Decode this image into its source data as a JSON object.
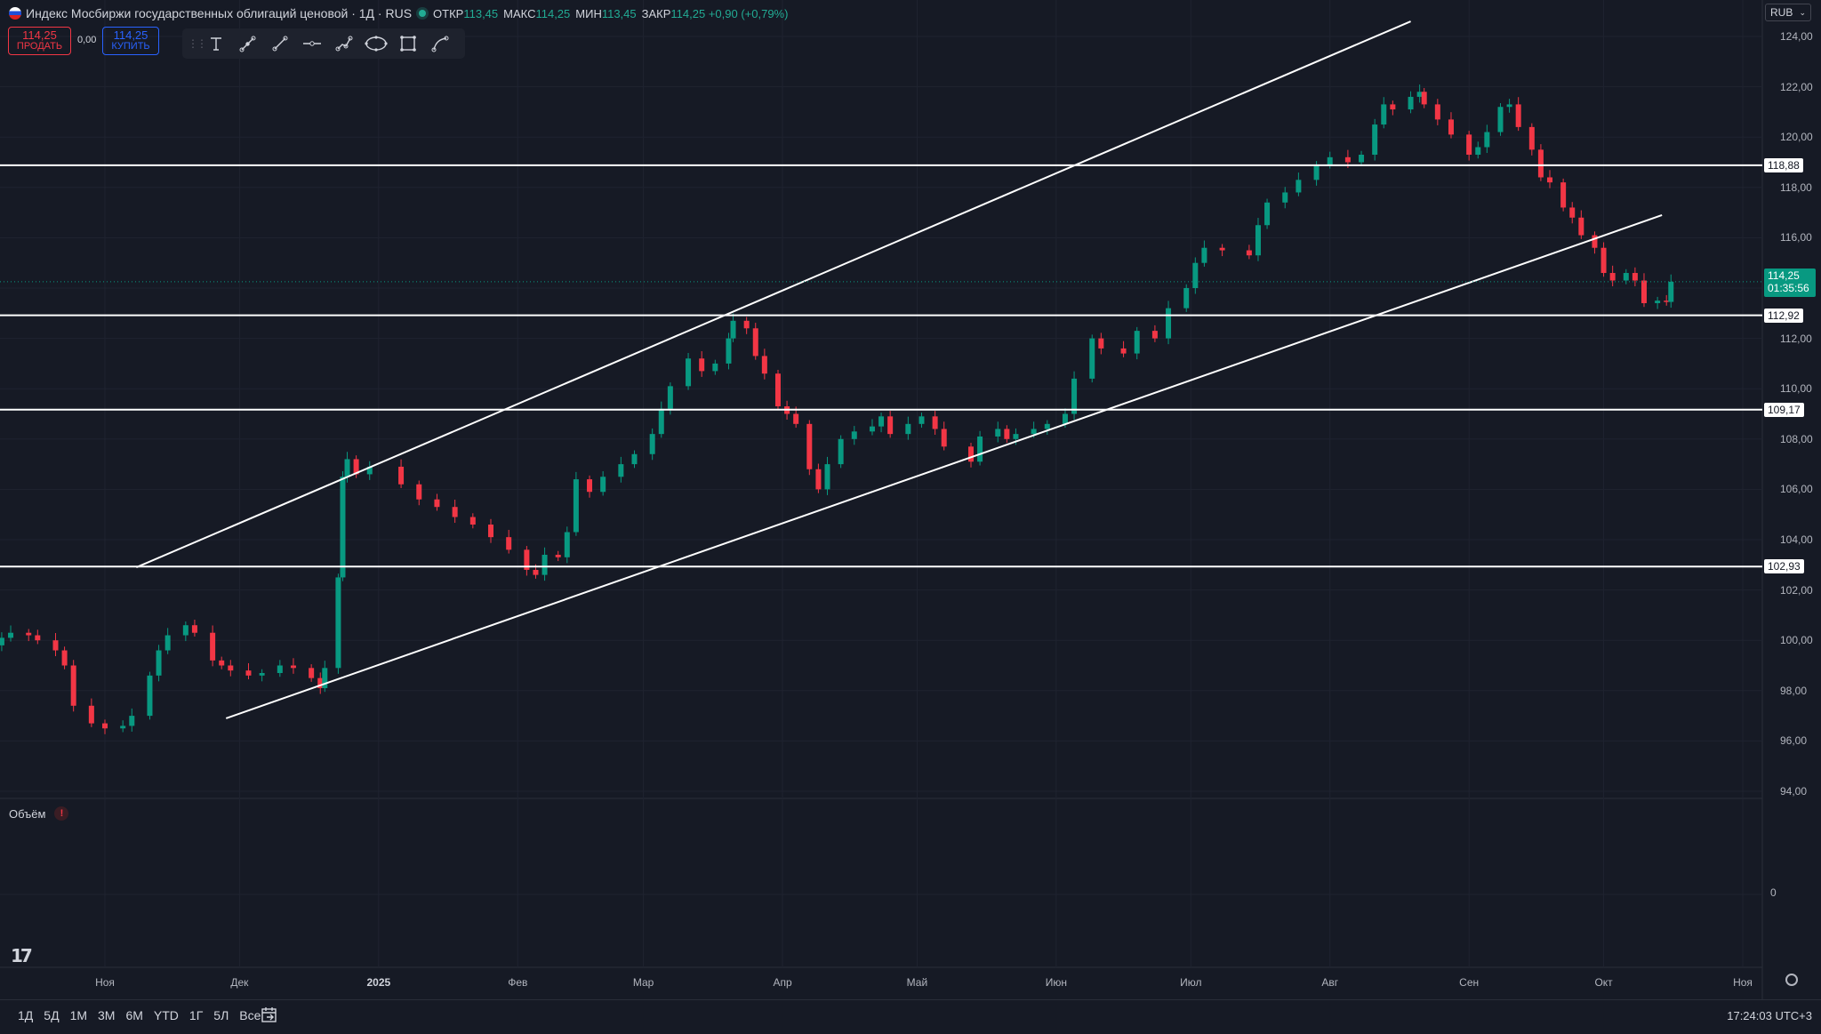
{
  "header": {
    "title": "Индекс Мосбиржи государственных облигаций ценовой · 1Д · RUS",
    "ohlc": [
      {
        "k": "ОТКР",
        "v": "113,45"
      },
      {
        "k": "МАКС",
        "v": "114,25"
      },
      {
        "k": "МИН",
        "v": "113,45"
      },
      {
        "k": "ЗАКР",
        "v": "114,25 +0,90 (+0,79%)"
      }
    ]
  },
  "trade": {
    "sell_price": "114,25",
    "sell_label": "ПРОДАТЬ",
    "spread": "0,00",
    "buy_price": "114,25",
    "buy_label": "КУПИТЬ"
  },
  "toolbar": {
    "tools": [
      "text-tool-icon",
      "arrow-line-tool-icon",
      "trend-line-tool-icon",
      "horizontal-ray-tool-icon",
      "path-tool-icon",
      "ellipse-tool-icon",
      "rectangle-tool-icon",
      "curve-tool-icon"
    ]
  },
  "currency": "RUB",
  "volume_label": "Объём",
  "volume_warning": "!",
  "volume_zero": "0",
  "last_price": {
    "value": "114,25",
    "countdown": "01:35:56"
  },
  "levels": [
    {
      "label": "118,88",
      "value": 118.88
    },
    {
      "label": "112,92",
      "value": 112.92
    },
    {
      "label": "109,17",
      "value": 109.17
    },
    {
      "label": "102,93",
      "value": 102.93
    }
  ],
  "bottom": {
    "ranges": [
      "1Д",
      "5Д",
      "1М",
      "3М",
      "6М",
      "YTD",
      "1Г",
      "5Л",
      "Все"
    ],
    "clock": "17:24:03 UTC+3"
  },
  "chart_data": {
    "type": "candlestick",
    "title": "Индекс Мосбиржи государственных облигаций ценовой",
    "ylim": [
      93.5,
      124.5
    ],
    "y_ticks": [
      94,
      96,
      98,
      100,
      102,
      104,
      106,
      108,
      110,
      112,
      114,
      116,
      118,
      120,
      122,
      124
    ],
    "y_tick_labels": [
      "94,00",
      "96,00",
      "98,00",
      "100,00",
      "102,00",
      "104,00",
      "106,00",
      "108,00",
      "110,00",
      "112,00",
      "114,00",
      "116,00",
      "118,00",
      "120,00",
      "122,00",
      "124,00"
    ],
    "x_ticks": [
      {
        "label": "Ноя",
        "date": "2024-11-01"
      },
      {
        "label": "Дек",
        "date": "2024-12-01"
      },
      {
        "label": "2025",
        "date": "2025-01-01",
        "bold": true
      },
      {
        "label": "Фев",
        "date": "2025-02-01"
      },
      {
        "label": "Мар",
        "date": "2025-03-01"
      },
      {
        "label": "Апр",
        "date": "2025-04-01"
      },
      {
        "label": "Май",
        "date": "2025-05-01"
      },
      {
        "label": "Июн",
        "date": "2025-06-01"
      },
      {
        "label": "Июл",
        "date": "2025-07-01"
      },
      {
        "label": "Авг",
        "date": "2025-08-01"
      },
      {
        "label": "Сен",
        "date": "2025-09-01"
      },
      {
        "label": "Окт",
        "date": "2025-10-01"
      },
      {
        "label": "Ноя",
        "date": "2025-11-01"
      }
    ],
    "closes": [
      [
        "2024-10-07",
        99.8
      ],
      [
        "2024-10-09",
        100.1
      ],
      [
        "2024-10-11",
        100.3
      ],
      [
        "2024-10-15",
        100.2
      ],
      [
        "2024-10-17",
        100.0
      ],
      [
        "2024-10-21",
        99.6
      ],
      [
        "2024-10-23",
        99.0
      ],
      [
        "2024-10-25",
        97.4
      ],
      [
        "2024-10-29",
        96.7
      ],
      [
        "2024-11-01",
        96.5
      ],
      [
        "2024-11-05",
        96.6
      ],
      [
        "2024-11-07",
        97.0
      ],
      [
        "2024-11-11",
        98.6
      ],
      [
        "2024-11-13",
        99.6
      ],
      [
        "2024-11-15",
        100.2
      ],
      [
        "2024-11-19",
        100.6
      ],
      [
        "2024-11-21",
        100.3
      ],
      [
        "2024-11-25",
        99.2
      ],
      [
        "2024-11-27",
        99.0
      ],
      [
        "2024-11-29",
        98.8
      ],
      [
        "2024-12-03",
        98.6
      ],
      [
        "2024-12-06",
        98.7
      ],
      [
        "2024-12-10",
        99.0
      ],
      [
        "2024-12-13",
        98.9
      ],
      [
        "2024-12-17",
        98.5
      ],
      [
        "2024-12-19",
        98.1
      ],
      [
        "2024-12-20",
        98.9
      ],
      [
        "2024-12-23",
        102.5
      ],
      [
        "2024-12-24",
        106.5
      ],
      [
        "2024-12-25",
        107.2
      ],
      [
        "2024-12-27",
        106.6
      ],
      [
        "2024-12-30",
        106.9
      ],
      [
        "2025-01-06",
        106.2
      ],
      [
        "2025-01-10",
        105.6
      ],
      [
        "2025-01-14",
        105.3
      ],
      [
        "2025-01-18",
        104.9
      ],
      [
        "2025-01-22",
        104.6
      ],
      [
        "2025-01-26",
        104.1
      ],
      [
        "2025-01-30",
        103.6
      ],
      [
        "2025-02-03",
        102.8
      ],
      [
        "2025-02-05",
        102.6
      ],
      [
        "2025-02-07",
        103.4
      ],
      [
        "2025-02-10",
        103.3
      ],
      [
        "2025-02-12",
        104.3
      ],
      [
        "2025-02-14",
        106.4
      ],
      [
        "2025-02-17",
        105.9
      ],
      [
        "2025-02-20",
        106.5
      ],
      [
        "2025-02-24",
        107.0
      ],
      [
        "2025-02-27",
        107.4
      ],
      [
        "2025-03-03",
        108.2
      ],
      [
        "2025-03-05",
        109.2
      ],
      [
        "2025-03-07",
        110.1
      ],
      [
        "2025-03-11",
        111.2
      ],
      [
        "2025-03-14",
        110.7
      ],
      [
        "2025-03-17",
        111.0
      ],
      [
        "2025-03-20",
        112.0
      ],
      [
        "2025-03-21",
        112.7
      ],
      [
        "2025-03-24",
        112.4
      ],
      [
        "2025-03-26",
        111.3
      ],
      [
        "2025-03-28",
        110.6
      ],
      [
        "2025-03-31",
        109.3
      ],
      [
        "2025-04-02",
        109.0
      ],
      [
        "2025-04-04",
        108.6
      ],
      [
        "2025-04-07",
        106.8
      ],
      [
        "2025-04-09",
        106.0
      ],
      [
        "2025-04-11",
        107.0
      ],
      [
        "2025-04-14",
        108.0
      ],
      [
        "2025-04-17",
        108.3
      ],
      [
        "2025-04-21",
        108.5
      ],
      [
        "2025-04-23",
        108.9
      ],
      [
        "2025-04-25",
        108.2
      ],
      [
        "2025-04-29",
        108.6
      ],
      [
        "2025-05-02",
        108.9
      ],
      [
        "2025-05-05",
        108.4
      ],
      [
        "2025-05-07",
        107.7
      ],
      [
        "2025-05-13",
        107.1
      ],
      [
        "2025-05-15",
        108.1
      ],
      [
        "2025-05-19",
        108.4
      ],
      [
        "2025-05-21",
        108.0
      ],
      [
        "2025-05-23",
        108.2
      ],
      [
        "2025-05-27",
        108.4
      ],
      [
        "2025-05-30",
        108.6
      ],
      [
        "2025-06-03",
        109.0
      ],
      [
        "2025-06-05",
        110.4
      ],
      [
        "2025-06-09",
        112.0
      ],
      [
        "2025-06-11",
        111.6
      ],
      [
        "2025-06-16",
        111.4
      ],
      [
        "2025-06-19",
        112.3
      ],
      [
        "2025-06-23",
        112.0
      ],
      [
        "2025-06-26",
        113.2
      ],
      [
        "2025-06-30",
        114.0
      ],
      [
        "2025-07-02",
        115.0
      ],
      [
        "2025-07-04",
        115.6
      ],
      [
        "2025-07-08",
        115.5
      ],
      [
        "2025-07-14",
        115.3
      ],
      [
        "2025-07-16",
        116.5
      ],
      [
        "2025-07-18",
        117.4
      ],
      [
        "2025-07-22",
        117.8
      ],
      [
        "2025-07-25",
        118.3
      ],
      [
        "2025-07-29",
        118.9
      ],
      [
        "2025-08-01",
        119.2
      ],
      [
        "2025-08-05",
        119.0
      ],
      [
        "2025-08-08",
        119.3
      ],
      [
        "2025-08-11",
        120.5
      ],
      [
        "2025-08-13",
        121.3
      ],
      [
        "2025-08-15",
        121.1
      ],
      [
        "2025-08-19",
        121.6
      ],
      [
        "2025-08-21",
        121.8
      ],
      [
        "2025-08-22",
        121.3
      ],
      [
        "2025-08-25",
        120.7
      ],
      [
        "2025-08-28",
        120.1
      ],
      [
        "2025-09-01",
        119.3
      ],
      [
        "2025-09-03",
        119.6
      ],
      [
        "2025-09-05",
        120.2
      ],
      [
        "2025-09-08",
        121.2
      ],
      [
        "2025-09-10",
        121.3
      ],
      [
        "2025-09-12",
        120.4
      ],
      [
        "2025-09-15",
        119.5
      ],
      [
        "2025-09-17",
        118.4
      ],
      [
        "2025-09-19",
        118.2
      ],
      [
        "2025-09-22",
        117.2
      ],
      [
        "2025-09-24",
        116.8
      ],
      [
        "2025-09-26",
        116.1
      ],
      [
        "2025-09-29",
        115.6
      ],
      [
        "2025-10-01",
        114.6
      ],
      [
        "2025-10-03",
        114.3
      ],
      [
        "2025-10-06",
        114.6
      ],
      [
        "2025-10-08",
        114.3
      ],
      [
        "2025-10-10",
        113.4
      ],
      [
        "2025-10-13",
        113.5
      ],
      [
        "2025-10-15",
        113.45
      ],
      [
        "2025-10-16",
        114.25
      ]
    ],
    "trend_lines": [
      {
        "from": [
          "2024-11-08",
          102.9
        ],
        "to": [
          "2025-08-19",
          124.6
        ]
      },
      {
        "from": [
          "2024-11-28",
          96.9
        ],
        "to": [
          "2025-10-14",
          116.9
        ]
      }
    ]
  }
}
